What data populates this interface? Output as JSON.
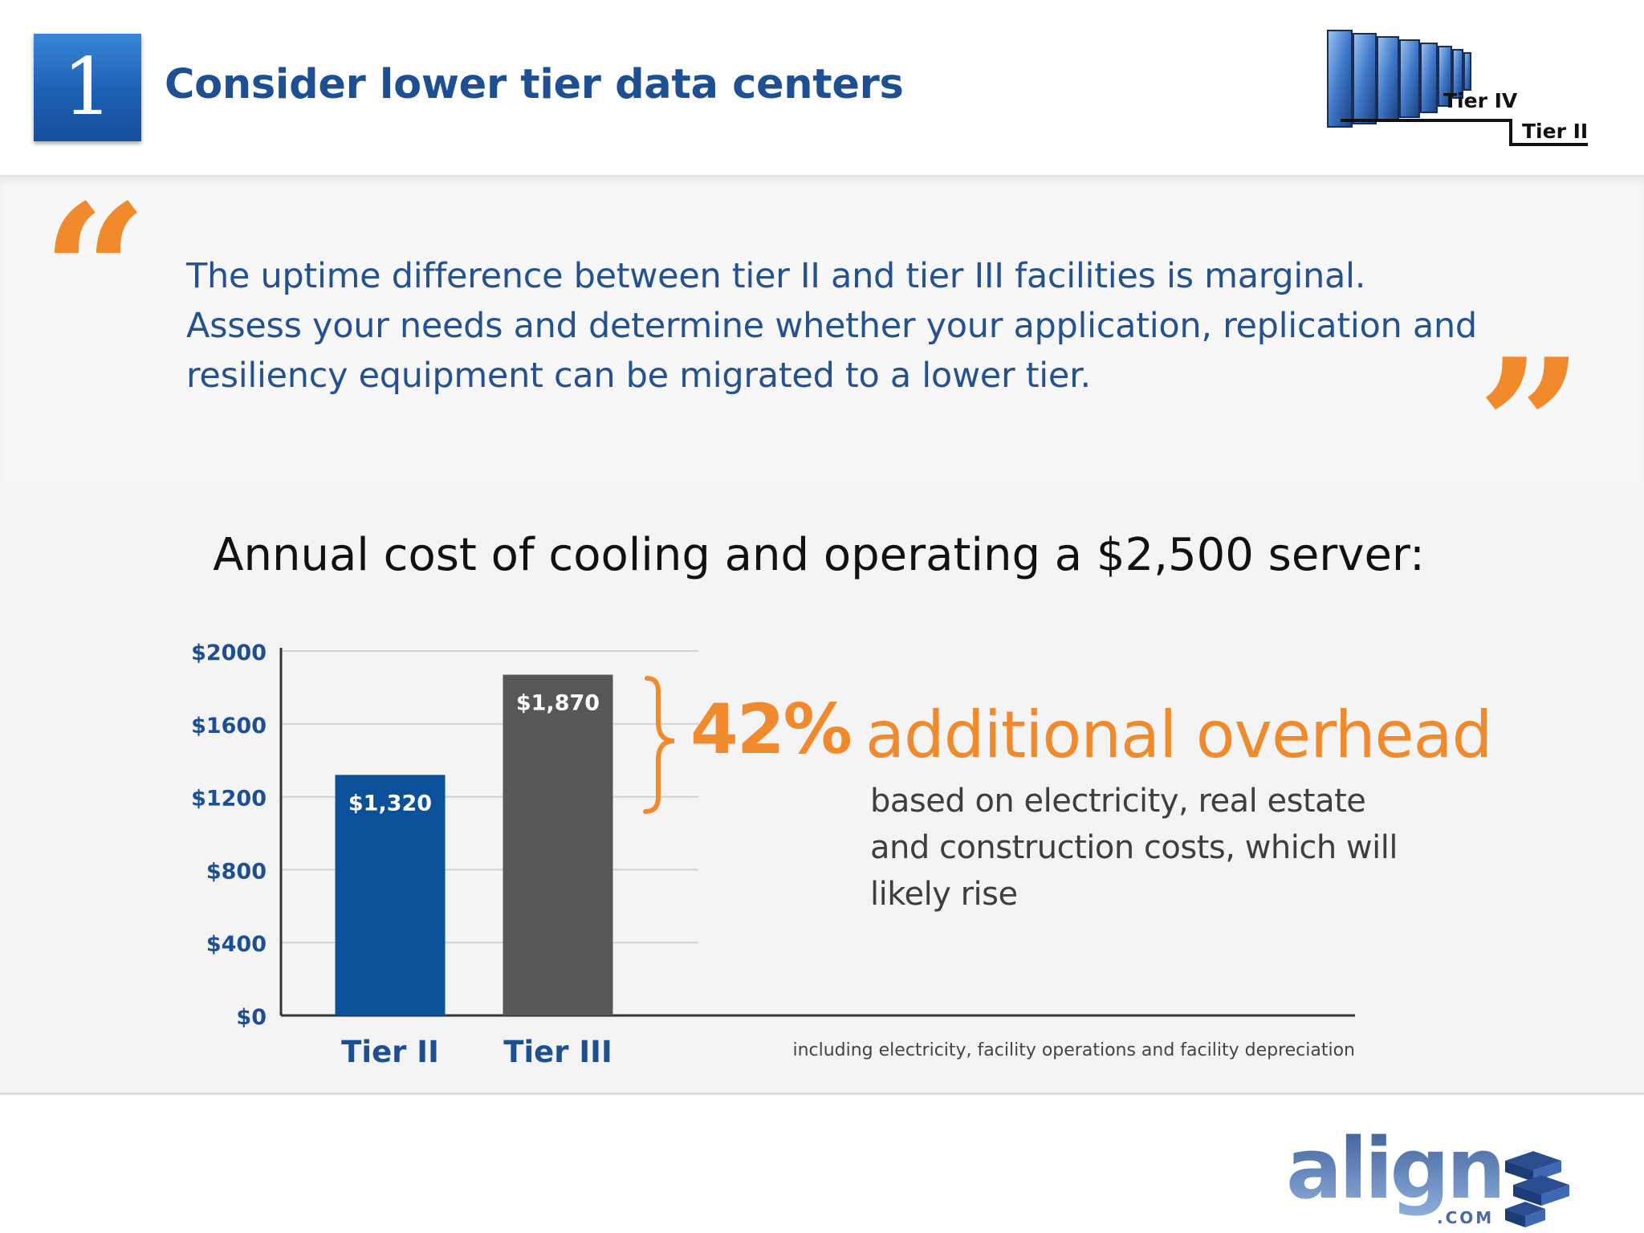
{
  "header": {
    "step_number": "1",
    "title": "Consider lower tier data centers",
    "tier_logo": {
      "label_high": "Tier IV",
      "label_low": "Tier II"
    }
  },
  "quote": {
    "text": "The uptime difference between tier II and tier III facilities is marginal. Assess your needs and determine whether your application, replication and resiliency equipment can be migrated to a lower tier."
  },
  "chart_data": {
    "type": "bar",
    "title": "Annual cost of cooling and operating a $2,500 server:",
    "categories": [
      "Tier II",
      "Tier III"
    ],
    "values": [
      1320,
      1870
    ],
    "data_labels": [
      "$1,320",
      "$1,870"
    ],
    "bar_colors": [
      "#0b5199",
      "#575757"
    ],
    "ylim": [
      0,
      2000
    ],
    "yticks": [
      0,
      400,
      800,
      1200,
      1600,
      2000
    ],
    "ytick_labels": [
      "$0",
      "$400",
      "$800",
      "$1200",
      "$1600",
      "$2000"
    ],
    "grid": true,
    "xlabel": "",
    "ylabel": "",
    "annotation": {
      "percent": "42%",
      "text": "additional overhead",
      "subtext": "based on electricity, real estate and construction costs, which will likely rise",
      "color": "#f08a2c"
    },
    "footnote": "including electricity, facility operations and facility depreciation"
  },
  "colors": {
    "accent_blue": "#1e4f93",
    "accent_orange": "#f08a2c",
    "axis_label_blue": "#1e4f93"
  },
  "footer": {
    "brand": {
      "name": "align",
      "suffix": ".COM"
    }
  }
}
